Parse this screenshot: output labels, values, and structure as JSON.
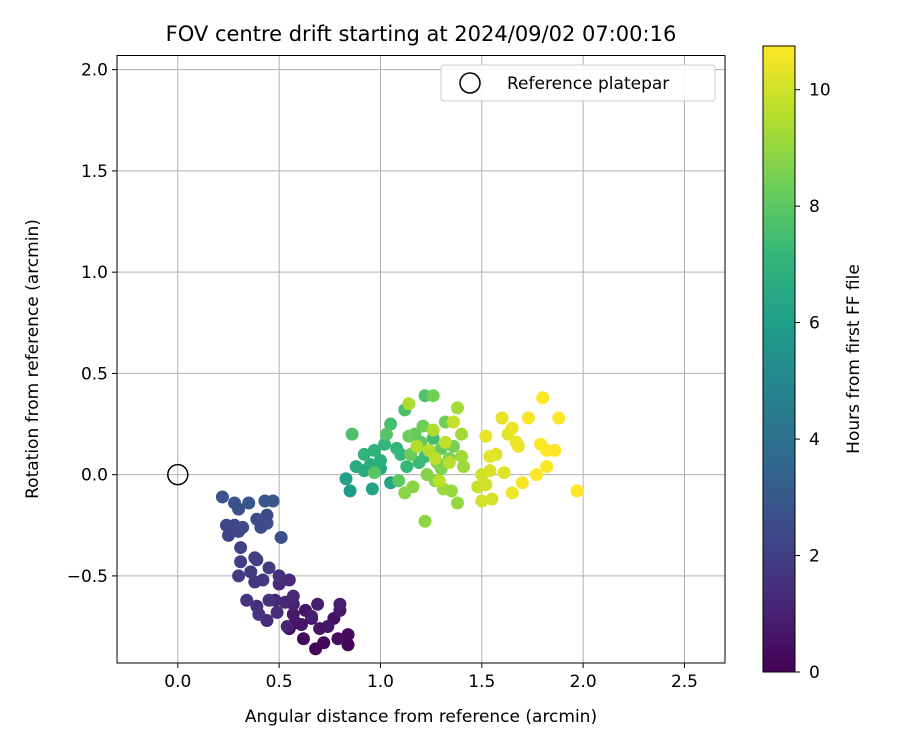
{
  "chart_data": {
    "type": "scatter",
    "title": "FOV centre drift starting at 2024/09/02 07:00:16",
    "xlabel": "Angular distance from reference (arcmin)",
    "ylabel": "Rotation from reference (arcmin)",
    "xlim": [
      -0.3,
      2.7
    ],
    "ylim": [
      -0.93,
      2.07
    ],
    "xticks": [
      0.0,
      0.5,
      1.0,
      1.5,
      2.0,
      2.5
    ],
    "xtick_labels": [
      "0.0",
      "0.5",
      "1.0",
      "1.5",
      "2.0",
      "2.5"
    ],
    "yticks": [
      -0.5,
      0.0,
      0.5,
      1.0,
      1.5,
      2.0
    ],
    "ytick_labels": [
      "−0.5",
      "0.0",
      "0.5",
      "1.0",
      "1.5",
      "2.0"
    ],
    "grid": true,
    "legend": {
      "placement": "top-right",
      "entries": [
        "Reference platepar"
      ]
    },
    "reference_point": {
      "x": 0.0,
      "y": 0.0,
      "marker": "open-circle"
    },
    "colorbar": {
      "label": "Hours from first FF file",
      "range": [
        0,
        10.75
      ],
      "ticks": [
        0,
        2,
        4,
        6,
        8,
        10
      ],
      "tick_labels": [
        "0",
        "2",
        "4",
        "6",
        "8",
        "10"
      ],
      "colormap": "viridis",
      "colormap_stops": [
        "#440154",
        "#482878",
        "#3e4a89",
        "#31688e",
        "#26828e",
        "#1f9e89",
        "#35b779",
        "#6ece58",
        "#b5de2b",
        "#fde725"
      ]
    },
    "points": [
      [
        0.84,
        -0.84,
        0.05
      ],
      [
        0.68,
        -0.86,
        0.1
      ],
      [
        0.62,
        -0.81,
        0.15
      ],
      [
        0.55,
        -0.76,
        0.2
      ],
      [
        0.72,
        -0.83,
        0.25
      ],
      [
        0.79,
        -0.81,
        0.3
      ],
      [
        0.84,
        -0.79,
        0.35
      ],
      [
        0.58,
        -0.73,
        0.4
      ],
      [
        0.66,
        -0.71,
        0.45
      ],
      [
        0.77,
        -0.71,
        0.5
      ],
      [
        0.7,
        -0.76,
        0.55
      ],
      [
        0.63,
        -0.67,
        0.6
      ],
      [
        0.61,
        -0.74,
        0.65
      ],
      [
        0.74,
        -0.75,
        0.7
      ],
      [
        0.8,
        -0.67,
        0.75
      ],
      [
        0.57,
        -0.69,
        0.8
      ],
      [
        0.69,
        -0.64,
        0.85
      ],
      [
        0.8,
        -0.64,
        0.9
      ],
      [
        0.66,
        -0.7,
        0.95
      ],
      [
        0.54,
        -0.75,
        1.0
      ],
      [
        0.57,
        -0.64,
        1.05
      ],
      [
        0.53,
        -0.63,
        1.1
      ],
      [
        0.57,
        -0.6,
        1.15
      ],
      [
        0.48,
        -0.62,
        1.2
      ],
      [
        0.55,
        -0.52,
        1.25
      ],
      [
        0.5,
        -0.54,
        1.3
      ],
      [
        0.44,
        -0.72,
        1.35
      ],
      [
        0.49,
        -0.68,
        1.4
      ],
      [
        0.5,
        -0.5,
        1.45
      ],
      [
        0.45,
        -0.62,
        1.5
      ],
      [
        0.39,
        -0.65,
        1.55
      ],
      [
        0.4,
        -0.69,
        1.6
      ],
      [
        0.34,
        -0.62,
        1.65
      ],
      [
        0.38,
        -0.53,
        1.7
      ],
      [
        0.42,
        -0.52,
        1.75
      ],
      [
        0.3,
        -0.5,
        1.8
      ],
      [
        0.36,
        -0.48,
        1.85
      ],
      [
        0.45,
        -0.46,
        1.9
      ],
      [
        0.39,
        -0.42,
        1.95
      ],
      [
        0.31,
        -0.43,
        2.0
      ],
      [
        0.38,
        -0.41,
        2.05
      ],
      [
        0.31,
        -0.36,
        2.1
      ],
      [
        0.25,
        -0.3,
        2.15
      ],
      [
        0.28,
        -0.25,
        2.2
      ],
      [
        0.24,
        -0.25,
        2.25
      ],
      [
        0.3,
        -0.28,
        2.3
      ],
      [
        0.32,
        -0.26,
        2.35
      ],
      [
        0.41,
        -0.26,
        2.4
      ],
      [
        0.44,
        -0.2,
        2.45
      ],
      [
        0.44,
        -0.24,
        2.5
      ],
      [
        0.39,
        -0.22,
        2.55
      ],
      [
        0.51,
        -0.31,
        2.6
      ],
      [
        0.3,
        -0.17,
        2.65
      ],
      [
        0.28,
        -0.14,
        2.7
      ],
      [
        0.35,
        -0.14,
        2.75
      ],
      [
        0.22,
        -0.11,
        2.8
      ],
      [
        0.43,
        -0.13,
        2.85
      ],
      [
        0.47,
        -0.13,
        2.9
      ],
      [
        0.85,
        -0.08,
        5.9
      ],
      [
        0.83,
        -0.02,
        6.1
      ],
      [
        0.96,
        -0.07,
        6.25
      ],
      [
        1.05,
        -0.04,
        6.35
      ],
      [
        1.0,
        0.03,
        6.45
      ],
      [
        0.92,
        0.02,
        6.55
      ],
      [
        0.88,
        0.04,
        6.6
      ],
      [
        0.95,
        0.05,
        6.7
      ],
      [
        1.0,
        0.07,
        6.8
      ],
      [
        0.97,
        0.12,
        6.9
      ],
      [
        0.92,
        0.1,
        6.95
      ],
      [
        1.02,
        0.15,
        7.0
      ],
      [
        1.08,
        0.13,
        7.1
      ],
      [
        1.1,
        0.1,
        7.15
      ],
      [
        1.13,
        0.04,
        7.2
      ],
      [
        1.19,
        0.06,
        7.3
      ],
      [
        1.22,
        0.09,
        7.35
      ],
      [
        1.25,
        0.11,
        7.4
      ],
      [
        1.26,
        0.18,
        7.45
      ],
      [
        1.05,
        0.25,
        7.5
      ],
      [
        1.12,
        0.32,
        7.6
      ],
      [
        0.86,
        0.2,
        7.7
      ],
      [
        1.22,
        0.39,
        7.75
      ],
      [
        1.03,
        0.2,
        7.85
      ],
      [
        0.97,
        0.01,
        7.9
      ],
      [
        1.09,
        -0.03,
        8.0
      ],
      [
        1.2,
        0.16,
        8.1
      ],
      [
        1.17,
        0.2,
        8.15
      ],
      [
        1.3,
        0.13,
        8.2
      ],
      [
        1.15,
        0.1,
        8.25
      ],
      [
        1.14,
        0.19,
        8.3
      ],
      [
        1.21,
        0.24,
        8.35
      ],
      [
        1.26,
        0.39,
        8.4
      ],
      [
        1.32,
        0.26,
        8.45
      ],
      [
        1.36,
        0.14,
        8.5
      ],
      [
        1.34,
        0.08,
        8.55
      ],
      [
        1.28,
        0.06,
        8.6
      ],
      [
        1.3,
        0.03,
        8.65
      ],
      [
        1.23,
        0.0,
        8.7
      ],
      [
        1.27,
        -0.03,
        8.75
      ],
      [
        1.16,
        -0.06,
        8.8
      ],
      [
        1.12,
        -0.09,
        8.85
      ],
      [
        1.22,
        -0.23,
        8.9
      ],
      [
        1.38,
        -0.14,
        9.0
      ],
      [
        1.35,
        -0.08,
        9.05
      ],
      [
        1.31,
        -0.07,
        9.1
      ],
      [
        1.41,
        0.04,
        9.15
      ],
      [
        1.4,
        0.09,
        9.2
      ],
      [
        1.4,
        0.2,
        9.25
      ],
      [
        1.38,
        0.33,
        9.3
      ],
      [
        1.14,
        0.35,
        9.4
      ],
      [
        1.26,
        0.22,
        9.45
      ],
      [
        1.18,
        0.14,
        9.5
      ],
      [
        1.24,
        0.12,
        9.55
      ],
      [
        1.34,
        0.06,
        9.6
      ],
      [
        1.29,
        -0.03,
        9.65
      ],
      [
        1.27,
        0.08,
        9.7
      ],
      [
        1.32,
        0.16,
        9.75
      ],
      [
        1.36,
        0.26,
        9.8
      ],
      [
        1.48,
        -0.06,
        9.9
      ],
      [
        1.5,
        0.0,
        9.95
      ],
      [
        1.52,
        -0.05,
        10.0
      ],
      [
        1.5,
        -0.13,
        10.05
      ],
      [
        1.55,
        -0.12,
        10.1
      ],
      [
        1.54,
        0.02,
        10.15
      ],
      [
        1.57,
        0.1,
        10.2
      ],
      [
        1.61,
        0.01,
        10.25
      ],
      [
        1.63,
        0.2,
        10.3
      ],
      [
        1.6,
        0.28,
        10.35
      ],
      [
        1.65,
        0.23,
        10.4
      ],
      [
        1.67,
        0.16,
        10.45
      ],
      [
        1.68,
        0.14,
        10.5
      ],
      [
        1.65,
        -0.09,
        10.55
      ],
      [
        1.7,
        -0.04,
        10.6
      ],
      [
        1.73,
        0.28,
        10.65
      ],
      [
        1.77,
        0.0,
        10.7
      ],
      [
        1.79,
        0.15,
        10.72
      ],
      [
        1.8,
        0.38,
        10.74
      ],
      [
        1.82,
        0.12,
        10.75
      ],
      [
        1.82,
        0.04,
        10.75
      ],
      [
        1.86,
        0.12,
        10.75
      ],
      [
        1.88,
        0.28,
        10.75
      ],
      [
        1.97,
        -0.08,
        10.75
      ],
      [
        1.52,
        0.19,
        10.4
      ],
      [
        1.54,
        0.09,
        10.3
      ]
    ]
  }
}
